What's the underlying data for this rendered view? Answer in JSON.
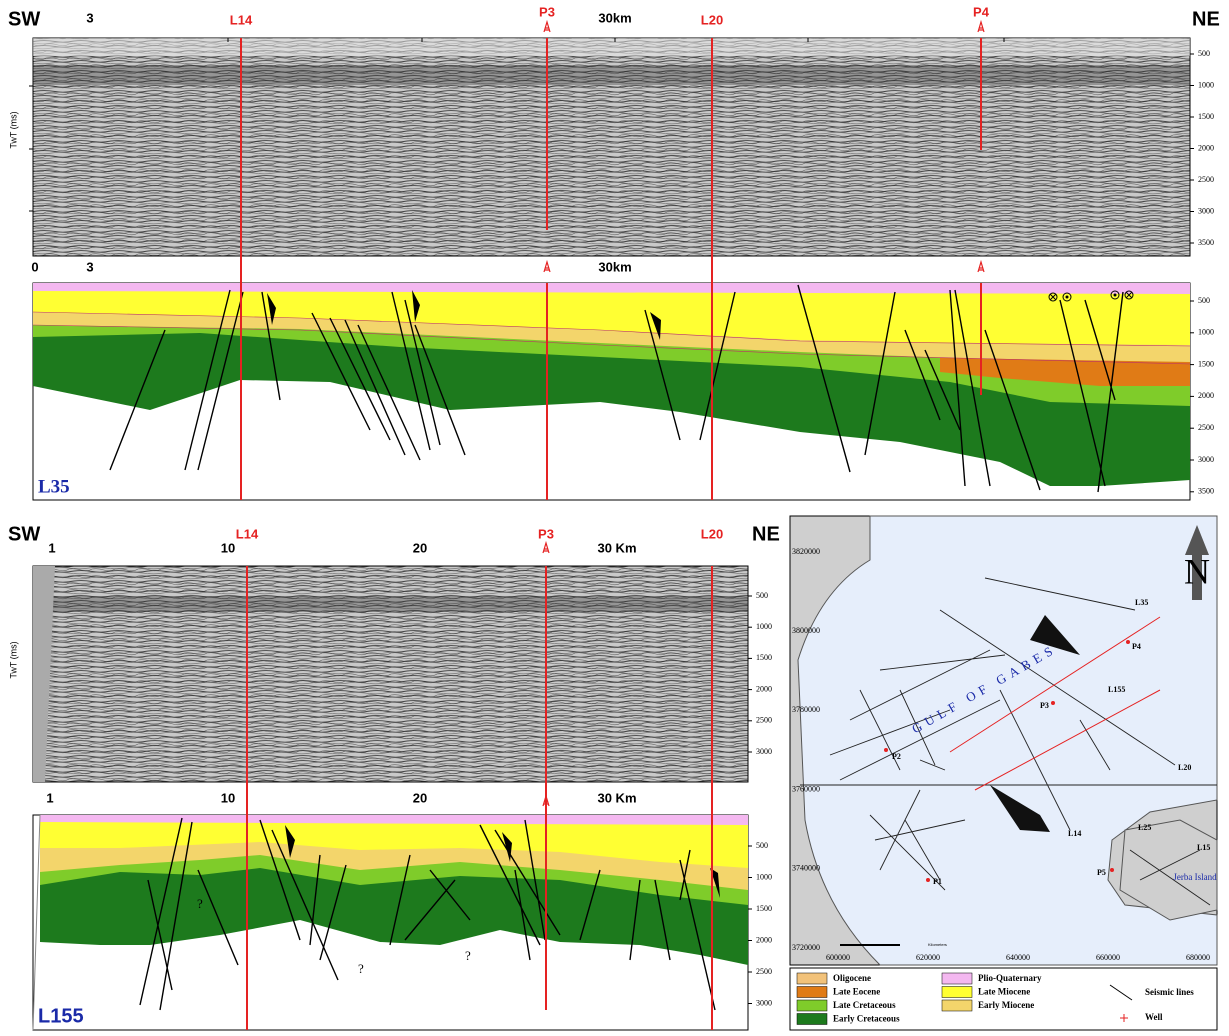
{
  "section_l35": {
    "sw": "SW",
    "ne": "NE",
    "seismic_top_ticks": [
      "3",
      "30km"
    ],
    "interp_top_ticks": [
      "0",
      "3",
      "30km"
    ],
    "lines": [
      "L14",
      "P3",
      "L20",
      "P4"
    ],
    "axis_label": "TwT (ms)",
    "depth_ticks": [
      500,
      1000,
      1500,
      2000,
      2500,
      3000,
      3500
    ],
    "name": "L35"
  },
  "section_l155": {
    "sw": "SW",
    "ne": "NE",
    "top_ticks": [
      "1",
      "10",
      "20",
      "30 Km"
    ],
    "lines": [
      "L14",
      "P3",
      "L20"
    ],
    "axis_label": "TwT (ms)",
    "depth_ticks": [
      500,
      1000,
      1500,
      2000,
      2500,
      3000
    ],
    "unknown": [
      "?",
      "?",
      "?"
    ],
    "name": "L155"
  },
  "map": {
    "northings": [
      3820000,
      3800000,
      3780000,
      3760000,
      3740000,
      3720000
    ],
    "eastings": [
      600000,
      620000,
      640000,
      660000,
      680000
    ],
    "north": "N",
    "gulf": "GULF OF GABES",
    "island": "Jerba Island",
    "scale_unit": "Kilometers",
    "line_labels": [
      "L35",
      "L155",
      "L20",
      "L14",
      "L25",
      "L15"
    ],
    "wells": [
      "P4",
      "P3",
      "P2",
      "P1",
      "P5"
    ]
  },
  "legend": {
    "items": [
      {
        "label": "Oligocene",
        "color": "#f2c27a"
      },
      {
        "label": "Late Eocene",
        "color": "#e07b16"
      },
      {
        "label": "Late Cretaceous",
        "color": "#7fcc2a"
      },
      {
        "label": "Early Cretaceous",
        "color": "#1d7a1d"
      },
      {
        "label": "Plio-Quaternary",
        "color": "#f4b8f0"
      },
      {
        "label": "Late Miocene",
        "color": "#ffff33"
      },
      {
        "label": "Early Miocene",
        "color": "#f3d56b"
      }
    ],
    "seismic_lines": "Seismic lines",
    "well": "Well"
  }
}
